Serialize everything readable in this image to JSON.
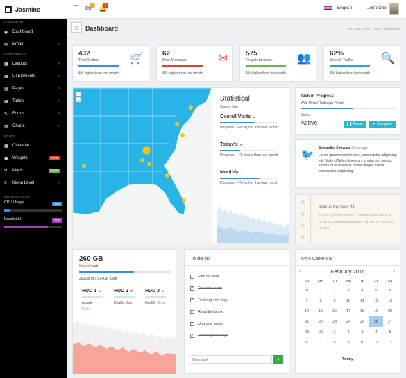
{
  "app": {
    "name": "Jasmine"
  },
  "topbar": {
    "mail_count": "1",
    "alert_count": "1",
    "language": "English",
    "user": "John Doe"
  },
  "sidebar": {
    "nav_heading": "Navigation",
    "nav": [
      {
        "label": "Dashboard"
      },
      {
        "label": "Email"
      }
    ],
    "comp_heading": "Components",
    "components": [
      {
        "label": "Layouts"
      },
      {
        "label": "UI Elements"
      },
      {
        "label": "Pages"
      },
      {
        "label": "Tables"
      },
      {
        "label": "Forms"
      },
      {
        "label": "Charts"
      }
    ],
    "extra_heading": "Extra",
    "extra": [
      {
        "label": "Calendar"
      },
      {
        "label": "Widgets",
        "badge": "New"
      },
      {
        "label": "Maps",
        "badge": "New"
      },
      {
        "label": "Menu Level"
      }
    ],
    "server_heading": "Server Status",
    "cpu": {
      "label": "CPU Usage",
      "value": "10%",
      "fraction": 0.1
    },
    "bandwidth": {
      "label": "Bandwidth",
      "value": "75%",
      "fraction": 0.75
    }
  },
  "page": {
    "title": "Dashboard",
    "you_are_here": "YOU ARE HERE",
    "crumb_home": "Home",
    "crumb_current": "Dashboard"
  },
  "info_boxes": [
    {
      "value": "432",
      "label": "Total Orders",
      "sub": "4% higher than last month",
      "color": "#3b8fd8",
      "icon": "cart-icon"
    },
    {
      "value": "62",
      "label": "New Message",
      "sub": "4% higher than last month",
      "color": "#e2451f",
      "icon": "envelope-icon"
    },
    {
      "value": "575",
      "label": "Registerd users",
      "sub": "4% higher than last month",
      "color": "#68b84a",
      "icon": "users-icon"
    },
    {
      "value": "62%",
      "label": "Search Traffic",
      "sub": "4% higher than last month",
      "color": "#29a9b8",
      "icon": "search-icon"
    }
  ],
  "statistical": {
    "title": "Statistical",
    "status": "Status : live",
    "overall": {
      "label": "Overall Visits",
      "arrow": "▲",
      "text": "Progress :- 4% higher than last month"
    },
    "today": {
      "label": "Today's",
      "arrow": "▼",
      "text": "Progress :- 4% lesser than last month"
    },
    "monthly": {
      "label": "Monthly",
      "arrow": "▲",
      "text": "Progress :- 4% higher than last month"
    }
  },
  "task": {
    "title": "Task in Progress",
    "name": "Web Portal Redesign Portal",
    "status_label": "Status :",
    "status": "Active",
    "pause": "Pause",
    "complete": "Complete",
    "progress": 0.55
  },
  "tweet": {
    "author": "Semantha Schwarz",
    "time": "1 hour ago",
    "text": "Lorem ipsum dolor sit amet, consectetur adipiscing elit. Nulla id Tellus bibendum ut eiusmod tempor incididunt ut labore et dolore magna aliqua consectetur adipiscing."
  },
  "note": {
    "title": "This is my note #1",
    "body": "This is my note content... Lorem ipsum dolor sit amet, consectetur adipiscing elit, sed do eiusmod tempor."
  },
  "server": {
    "size": "260 GB",
    "label": "Server Load",
    "used": "250GB of 1,024GB used",
    "hdds": [
      {
        "name": "HDD 1",
        "arrow": "▲",
        "health_label": "Health:",
        "health": "Good",
        "color": "#68b84a"
      },
      {
        "name": "HDD 2",
        "arrow": "▼",
        "health_label": "Health:",
        "health": "Bad",
        "color": "#e2451f"
      },
      {
        "name": "HDD 3",
        "arrow": "▲",
        "health_label": "Health:",
        "health": "Good",
        "color": "#68b84a"
      }
    ]
  },
  "todo": {
    "title": "To do list",
    "placeholder": "New task",
    "items": [
      {
        "text": "Find an idea.",
        "done": false
      },
      {
        "text": "Do some work",
        "done": true
      },
      {
        "text": "Redesign my logo",
        "done": true
      },
      {
        "text": "Read the book",
        "done": false
      },
      {
        "text": "Upgrade server",
        "done": false
      },
      {
        "text": "Redesign my logo",
        "done": true
      }
    ]
  },
  "calendar": {
    "title": "Mini Calendar",
    "month": "February 2016",
    "footer": "Today",
    "weekdays": [
      "Su",
      "Mo",
      "Tu",
      "We",
      "Th",
      "Fr",
      "Sa"
    ],
    "weeks": [
      [
        "31",
        "1",
        "2",
        "3",
        "4",
        "5",
        "6"
      ],
      [
        "7",
        "8",
        "9",
        "10",
        "11",
        "12",
        "13"
      ],
      [
        "14",
        "15",
        "16",
        "17",
        "18",
        "19",
        "20"
      ],
      [
        "21",
        "22",
        "23",
        "24",
        "25",
        "26",
        "27"
      ],
      [
        "28",
        "29",
        "1",
        "2",
        "3",
        "4",
        "5"
      ],
      [
        "6",
        "7",
        "8",
        "9",
        "10",
        "11",
        "12"
      ]
    ],
    "today": "26"
  }
}
